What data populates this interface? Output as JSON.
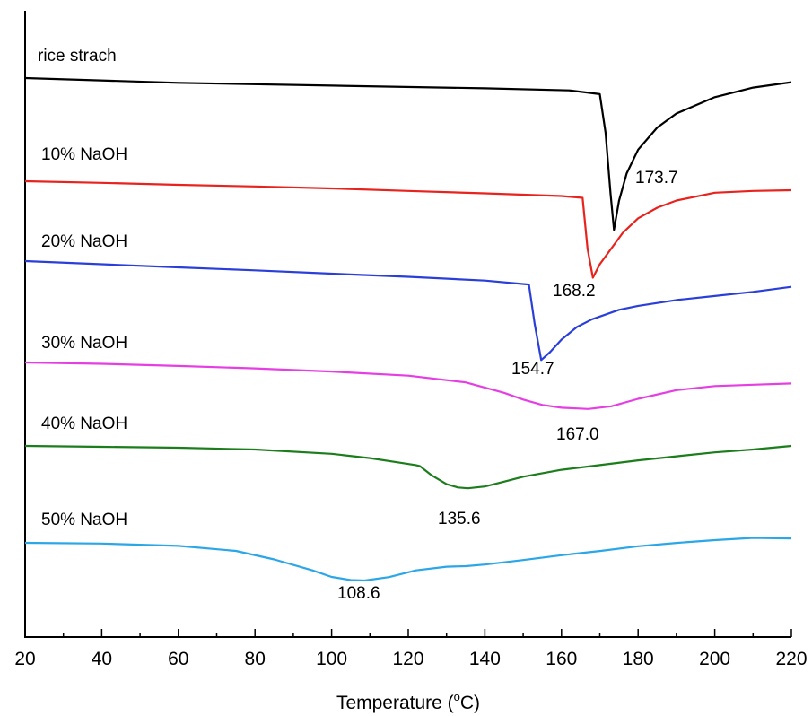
{
  "chart_data": {
    "type": "line",
    "xlabel": "Temperature (",
    "xlabel_unit_sup": "o",
    "xlabel_unit": "C)",
    "ylabel": "",
    "xlim": [
      20,
      220
    ],
    "x_ticks": [
      20,
      40,
      60,
      80,
      100,
      120,
      140,
      160,
      180,
      200,
      220
    ],
    "grid": false,
    "series": [
      {
        "name": "rice strach",
        "color": "#000000",
        "peak": "173.7",
        "points": [
          [
            20,
            0
          ],
          [
            60,
            -1.4
          ],
          [
            100,
            -2.2
          ],
          [
            140,
            -3.0
          ],
          [
            162,
            -3.6
          ],
          [
            170,
            -4.7
          ],
          [
            171.5,
            -16
          ],
          [
            172.8,
            -34
          ],
          [
            173.7,
            -44.5
          ],
          [
            175,
            -36
          ],
          [
            177,
            -28
          ],
          [
            180,
            -21
          ],
          [
            185,
            -14.5
          ],
          [
            190,
            -10.4
          ],
          [
            200,
            -5.6
          ],
          [
            210,
            -2.8
          ],
          [
            220,
            -1.2
          ]
        ]
      },
      {
        "name": "10% NaOH",
        "color": "#e8221d",
        "peak": "168.2",
        "points": [
          [
            20,
            0
          ],
          [
            40,
            -0.7
          ],
          [
            60,
            -1.6
          ],
          [
            80,
            -2.3
          ],
          [
            100,
            -3.2
          ],
          [
            120,
            -4.3
          ],
          [
            140,
            -5.4
          ],
          [
            160,
            -6.6
          ],
          [
            165.5,
            -7.4
          ],
          [
            166.8,
            -30
          ],
          [
            168.2,
            -43
          ],
          [
            170,
            -37
          ],
          [
            173,
            -30
          ],
          [
            176,
            -23
          ],
          [
            180,
            -16.5
          ],
          [
            185,
            -11.8
          ],
          [
            190,
            -8.6
          ],
          [
            200,
            -5.1
          ],
          [
            210,
            -4.3
          ],
          [
            220,
            -4.0
          ]
        ]
      },
      {
        "name": "20% NaOH",
        "color": "#2a3fd9",
        "peak": "154.7",
        "points": [
          [
            20,
            0
          ],
          [
            40,
            -2.0
          ],
          [
            60,
            -4.0
          ],
          [
            80,
            -5.9
          ],
          [
            100,
            -8.0
          ],
          [
            120,
            -10.0
          ],
          [
            140,
            -12.4
          ],
          [
            151.5,
            -14.9
          ],
          [
            153,
            -40
          ],
          [
            154.7,
            -63
          ],
          [
            157,
            -58
          ],
          [
            160,
            -50
          ],
          [
            164,
            -42
          ],
          [
            168,
            -37
          ],
          [
            175,
            -31
          ],
          [
            180,
            -28.5
          ],
          [
            190,
            -24.8
          ],
          [
            200,
            -22.2
          ],
          [
            210,
            -19.6
          ],
          [
            220,
            -16.4
          ]
        ]
      },
      {
        "name": "30% NaOH",
        "color": "#e53ee3",
        "peak": "167.0",
        "points": [
          [
            20,
            0
          ],
          [
            40,
            -1.0
          ],
          [
            60,
            -2.6
          ],
          [
            80,
            -4.4
          ],
          [
            100,
            -6.7
          ],
          [
            120,
            -9.8
          ],
          [
            135,
            -14.8
          ],
          [
            145,
            -22.5
          ],
          [
            150,
            -27.5
          ],
          [
            155,
            -31.5
          ],
          [
            160,
            -33.6
          ],
          [
            167,
            -34.5
          ],
          [
            173,
            -32.5
          ],
          [
            180,
            -27
          ],
          [
            190,
            -20.5
          ],
          [
            200,
            -17.5
          ],
          [
            210,
            -16.5
          ],
          [
            220,
            -15.6
          ]
        ]
      },
      {
        "name": "40% NaOH",
        "color": "#1c7d1c",
        "peak": "135.6",
        "points": [
          [
            20,
            0
          ],
          [
            40,
            -0.8
          ],
          [
            60,
            -1.7
          ],
          [
            80,
            -3.3
          ],
          [
            100,
            -7.3
          ],
          [
            110,
            -11.3
          ],
          [
            118,
            -15.7
          ],
          [
            122,
            -17.8
          ],
          [
            123,
            -18.7
          ],
          [
            126,
            -27
          ],
          [
            130,
            -35.5
          ],
          [
            133,
            -38.6
          ],
          [
            135.6,
            -39.3
          ],
          [
            140,
            -37.7
          ],
          [
            145,
            -33.2
          ],
          [
            150,
            -28.6
          ],
          [
            160,
            -22.2
          ],
          [
            170,
            -17.8
          ],
          [
            180,
            -13.4
          ],
          [
            190,
            -9.7
          ],
          [
            200,
            -6.0
          ],
          [
            210,
            -3.3
          ],
          [
            220,
            0
          ]
        ]
      },
      {
        "name": "50% NaOH",
        "color": "#2ba6e6",
        "peak": "108.6",
        "points": [
          [
            20,
            0
          ],
          [
            40,
            -0.6
          ],
          [
            60,
            -2.6
          ],
          [
            75,
            -6.9
          ],
          [
            85,
            -14.2
          ],
          [
            95,
            -23.6
          ],
          [
            100,
            -29.2
          ],
          [
            105,
            -31.9
          ],
          [
            108.6,
            -32.3
          ],
          [
            115,
            -29.4
          ],
          [
            122,
            -23.6
          ],
          [
            130,
            -20.5
          ],
          [
            135,
            -20.0
          ],
          [
            140,
            -18.6
          ],
          [
            150,
            -14.8
          ],
          [
            160,
            -10.6
          ],
          [
            170,
            -7.0
          ],
          [
            180,
            -2.9
          ],
          [
            190,
            -0.1
          ],
          [
            200,
            2.3
          ],
          [
            210,
            4.2
          ],
          [
            220,
            3.8
          ]
        ]
      }
    ]
  }
}
